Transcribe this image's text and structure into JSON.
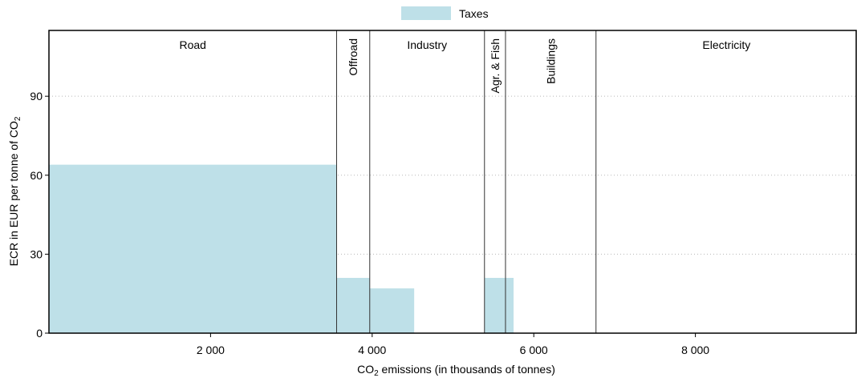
{
  "chart_data": {
    "type": "bar",
    "subtype": "variable-width",
    "legend": {
      "position": "top-center",
      "entries": [
        {
          "name": "Taxes",
          "color": "#bee0e8"
        }
      ]
    },
    "xlabel_parts": [
      "CO",
      "2",
      " emissions (in thousands of tonnes)"
    ],
    "ylabel_parts": [
      "ECR in EUR per tonne of CO",
      "2"
    ],
    "xlim": [
      0,
      10000
    ],
    "ylim": [
      0,
      115
    ],
    "x_ticks": [
      {
        "value": 2000,
        "label": "2 000"
      },
      {
        "value": 4000,
        "label": "4 000"
      },
      {
        "value": 6000,
        "label": "6 000"
      },
      {
        "value": 8000,
        "label": "8 000"
      }
    ],
    "y_ticks": [
      {
        "value": 0,
        "label": "0"
      },
      {
        "value": 30,
        "label": "30"
      },
      {
        "value": 60,
        "label": "60"
      },
      {
        "value": 90,
        "label": "90"
      }
    ],
    "grid": "horizontal dotted",
    "sectors": [
      {
        "name": "Road",
        "x_start": 0,
        "x_end": 3560,
        "label_orientation": "horizontal"
      },
      {
        "name": "Offroad",
        "x_start": 3560,
        "x_end": 3970,
        "label_orientation": "vertical"
      },
      {
        "name": "Industry",
        "x_start": 3970,
        "x_end": 5390,
        "label_orientation": "horizontal"
      },
      {
        "name": "Agr. & Fish",
        "x_start": 5390,
        "x_end": 5650,
        "label_orientation": "vertical"
      },
      {
        "name": "Buildings",
        "x_start": 5650,
        "x_end": 6770,
        "label_orientation": "vertical"
      },
      {
        "name": "Electricity",
        "x_start": 6770,
        "x_end": 10000,
        "label_orientation": "horizontal"
      }
    ],
    "series": [
      {
        "name": "Taxes",
        "color": "#bee0e8",
        "bars": [
          {
            "x_start": 0,
            "x_end": 3560,
            "value": 64
          },
          {
            "x_start": 3560,
            "x_end": 3970,
            "value": 21
          },
          {
            "x_start": 3970,
            "x_end": 4520,
            "value": 17
          },
          {
            "x_start": 5390,
            "x_end": 5750,
            "value": 21
          }
        ]
      }
    ]
  }
}
